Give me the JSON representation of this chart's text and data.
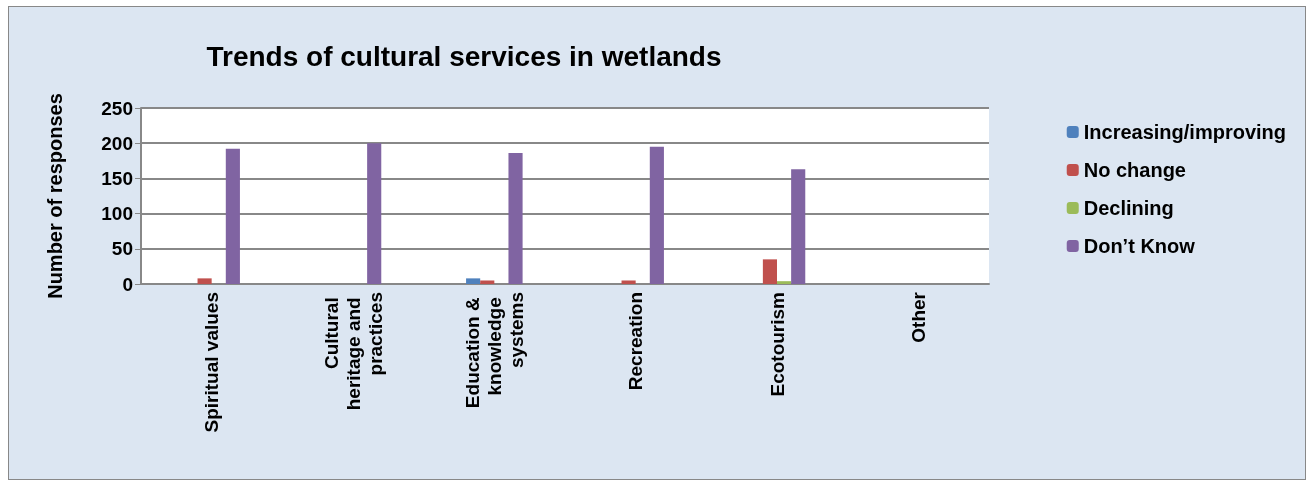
{
  "chart_data": {
    "type": "bar",
    "title": "Trends of cultural services in wetlands",
    "ylabel": "Number of responses",
    "categories": [
      "Spiritual values",
      "Cultural heritage and practices",
      "Education & knowledge systems",
      "Recreation",
      "Ecotourism",
      "Other"
    ],
    "series": [
      {
        "name": "Increasing/improving",
        "color": "#4f81bd",
        "values": [
          0,
          0,
          8,
          0,
          0,
          0
        ]
      },
      {
        "name": "No change",
        "color": "#c0504d",
        "values": [
          8,
          0,
          5,
          5,
          35,
          0
        ]
      },
      {
        "name": "Declining",
        "color": "#9bbb59",
        "values": [
          0,
          0,
          0,
          0,
          4,
          0
        ]
      },
      {
        "name": "Don’t Know",
        "color": "#8064a2",
        "values": [
          192,
          200,
          186,
          195,
          163,
          0
        ]
      }
    ],
    "ylim": [
      0,
      250
    ],
    "yticks": [
      0,
      50,
      100,
      150,
      200,
      250
    ],
    "grid": "y",
    "legend": "right"
  }
}
